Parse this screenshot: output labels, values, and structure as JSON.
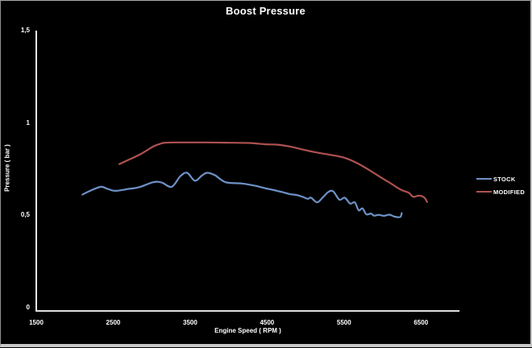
{
  "window": {
    "background": "#000000",
    "border_color": "#c4c4c4",
    "axis_color": "#ffffff",
    "text_color": "#ffffff"
  },
  "chart_data": {
    "type": "line",
    "title": "Boost Pressure",
    "xlabel": "Engine Speed ( RPM )",
    "ylabel": "Pressure ( bar )",
    "xlim": [
      1500,
      7000
    ],
    "ylim": [
      0,
      1.5
    ],
    "grid": false,
    "smooth_lines": true,
    "legend_position": "right",
    "xtick_values": [
      1500,
      2500,
      3500,
      4500,
      5500,
      6500
    ],
    "xtick_labels": [
      "1500",
      "2500",
      "3500",
      "4500",
      "5500",
      "6500"
    ],
    "ytick_values": [
      0,
      0.5,
      1,
      1.5
    ],
    "ytick_labels": [
      "0",
      "0,5",
      "1",
      "1,5"
    ],
    "series": [
      {
        "name": "STOCK",
        "color": "#6e92c7",
        "points": [
          [
            2100,
            0.63
          ],
          [
            2200,
            0.65
          ],
          [
            2340,
            0.672
          ],
          [
            2430,
            0.66
          ],
          [
            2530,
            0.65
          ],
          [
            2690,
            0.66
          ],
          [
            2840,
            0.67
          ],
          [
            3020,
            0.697
          ],
          [
            3130,
            0.695
          ],
          [
            3260,
            0.672
          ],
          [
            3370,
            0.728
          ],
          [
            3460,
            0.748
          ],
          [
            3560,
            0.705
          ],
          [
            3650,
            0.732
          ],
          [
            3720,
            0.748
          ],
          [
            3820,
            0.735
          ],
          [
            3960,
            0.697
          ],
          [
            4170,
            0.69
          ],
          [
            4350,
            0.677
          ],
          [
            4490,
            0.663
          ],
          [
            4590,
            0.654
          ],
          [
            4700,
            0.643
          ],
          [
            4800,
            0.632
          ],
          [
            4880,
            0.628
          ],
          [
            4960,
            0.618
          ],
          [
            5030,
            0.607
          ],
          [
            5070,
            0.613
          ],
          [
            5150,
            0.588
          ],
          [
            5220,
            0.613
          ],
          [
            5300,
            0.645
          ],
          [
            5360,
            0.647
          ],
          [
            5440,
            0.602
          ],
          [
            5510,
            0.613
          ],
          [
            5580,
            0.581
          ],
          [
            5640,
            0.588
          ],
          [
            5690,
            0.545
          ],
          [
            5740,
            0.555
          ],
          [
            5790,
            0.523
          ],
          [
            5850,
            0.527
          ],
          [
            5890,
            0.516
          ],
          [
            5950,
            0.52
          ],
          [
            6020,
            0.515
          ],
          [
            6090,
            0.521
          ],
          [
            6160,
            0.51
          ],
          [
            6230,
            0.509
          ],
          [
            6250,
            0.53
          ]
        ]
      },
      {
        "name": "MODIFIED",
        "color": "#ae5250",
        "points": [
          [
            2580,
            0.795
          ],
          [
            2700,
            0.818
          ],
          [
            2860,
            0.85
          ],
          [
            3020,
            0.89
          ],
          [
            3100,
            0.903
          ],
          [
            3180,
            0.911
          ],
          [
            3400,
            0.912
          ],
          [
            3700,
            0.912
          ],
          [
            3960,
            0.911
          ],
          [
            4270,
            0.909
          ],
          [
            4480,
            0.902
          ],
          [
            4640,
            0.9
          ],
          [
            4800,
            0.89
          ],
          [
            4980,
            0.872
          ],
          [
            5140,
            0.858
          ],
          [
            5320,
            0.845
          ],
          [
            5500,
            0.83
          ],
          [
            5670,
            0.8
          ],
          [
            5850,
            0.757
          ],
          [
            6020,
            0.712
          ],
          [
            6110,
            0.69
          ],
          [
            6190,
            0.668
          ],
          [
            6260,
            0.652
          ],
          [
            6340,
            0.64
          ],
          [
            6400,
            0.618
          ],
          [
            6470,
            0.624
          ],
          [
            6540,
            0.615
          ],
          [
            6580,
            0.59
          ]
        ]
      }
    ]
  }
}
